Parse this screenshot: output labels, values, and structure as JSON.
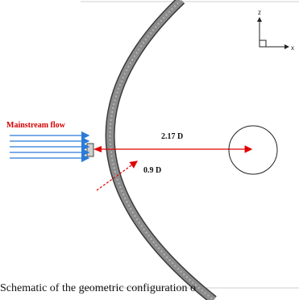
{
  "diagram": {
    "mainstream_label": "Mainstream flow",
    "dist_center_label": "2.17 D",
    "dist_wall_label": "0.9 D",
    "axis_z_label": "z",
    "axis_x_label": "x",
    "caption_text": "Schematic of the geometric configuration o",
    "colors": {
      "mainstream": "#d40000",
      "flow_arrows": "#2a7bd8",
      "red_arrow": "#e00000",
      "wall_fill": "#8c8c8c",
      "wall_edge": "#3a3a3a",
      "circle": "#222222"
    }
  }
}
